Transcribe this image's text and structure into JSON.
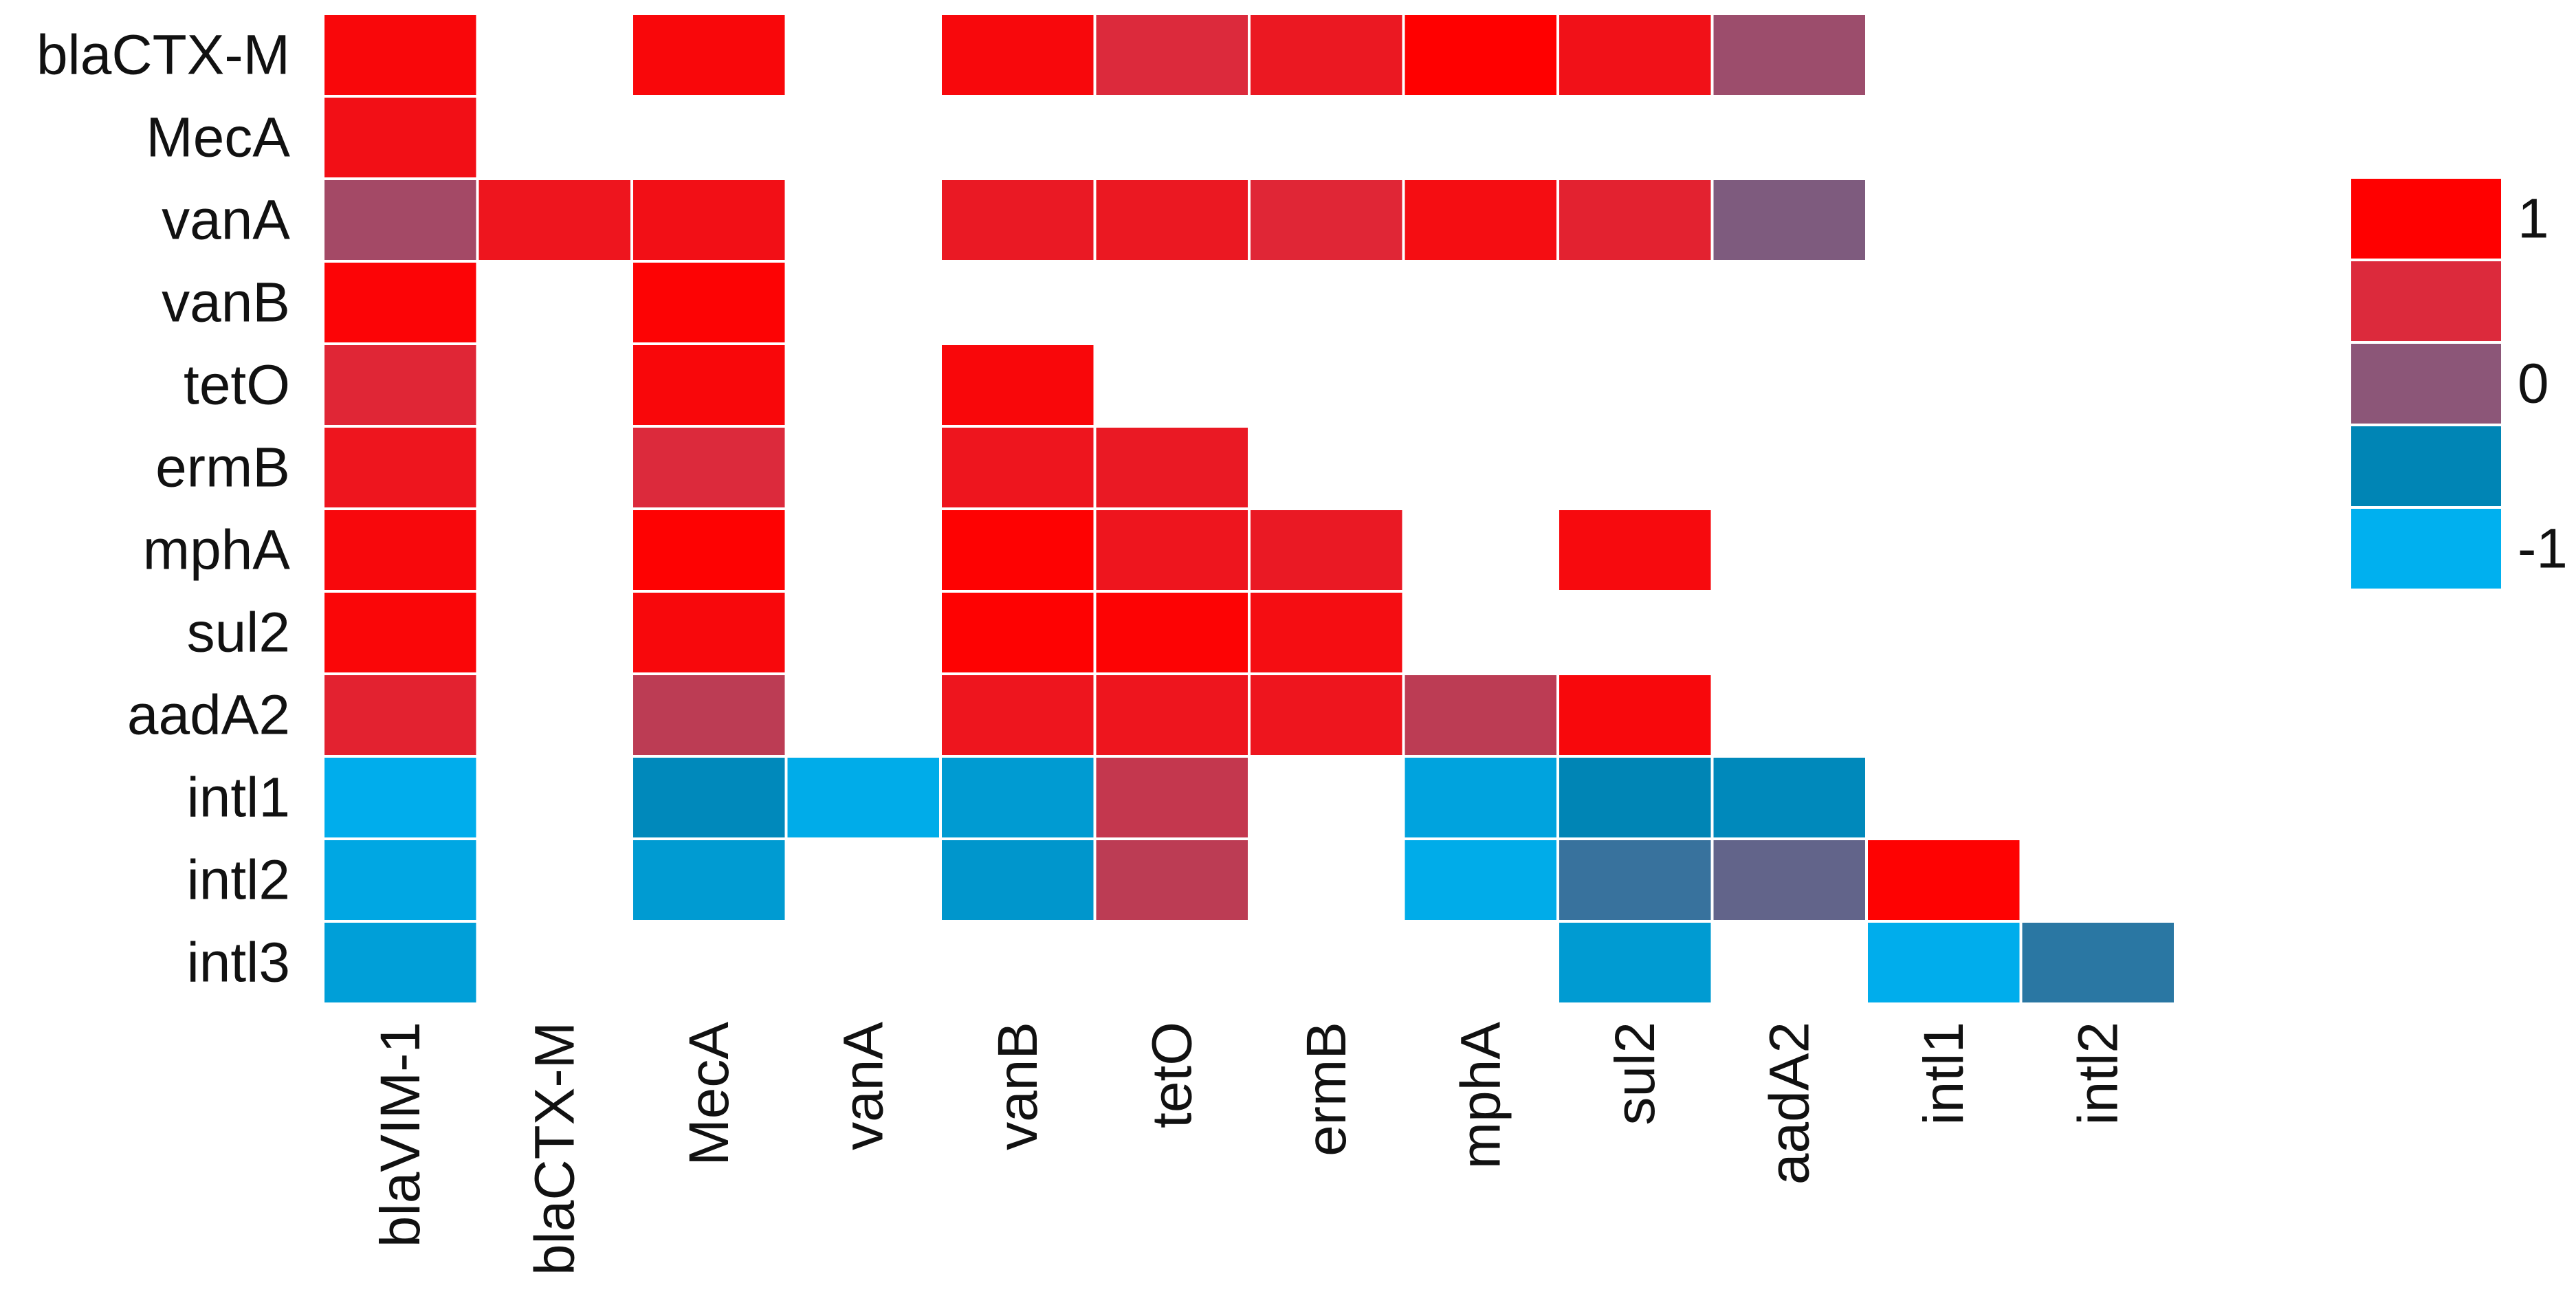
{
  "chart_data": {
    "type": "heatmap",
    "row_labels": [
      "blaCTX-M",
      "MecA",
      "vanA",
      "vanB",
      "tetO",
      "ermB",
      "mphA",
      "sul2",
      "aadA2",
      "intl1",
      "intl2",
      "intl3"
    ],
    "col_labels": [
      "blaVIM-1",
      "blaCTX-M",
      "MecA",
      "vanA",
      "vanB",
      "tetO",
      "ermB",
      "mphA",
      "sul2",
      "aadA2",
      "intl1",
      "intl2"
    ],
    "values": [
      [
        0.92,
        null,
        0.92,
        null,
        0.9,
        0.5,
        0.72,
        1.0,
        0.8,
        0.1
      ],
      [
        0.82
      ],
      [
        0.15,
        0.75,
        0.82,
        null,
        0.7,
        0.72,
        0.55,
        0.85,
        0.6,
        -0.05
      ],
      [
        0.95,
        null,
        0.97
      ],
      [
        0.55,
        null,
        0.92,
        null,
        0.92
      ],
      [
        0.75,
        null,
        0.5,
        null,
        0.75,
        0.7
      ],
      [
        0.9,
        null,
        0.98,
        null,
        0.98,
        0.75,
        0.7,
        null,
        0.88
      ],
      [
        0.93,
        null,
        0.9,
        null,
        0.98,
        0.97,
        0.85
      ],
      [
        0.6,
        null,
        0.3,
        null,
        0.75,
        0.75,
        0.75,
        0.3,
        0.9
      ],
      [
        -0.97,
        null,
        -0.55,
        -0.95,
        -0.75,
        0.35,
        null,
        -0.85,
        -0.5,
        -0.55
      ],
      [
        -0.9,
        null,
        -0.75,
        null,
        -0.7,
        0.3,
        null,
        -0.95,
        -0.3,
        -0.15,
        0.98
      ],
      [
        -0.8,
        null,
        null,
        null,
        null,
        null,
        null,
        null,
        -0.75,
        null,
        -0.97,
        -0.35
      ]
    ],
    "scale": {
      "min": -1,
      "max": 1
    },
    "legend": {
      "position": "right",
      "tick_labels": [
        "1",
        "0",
        "-1"
      ],
      "tick_values": [
        1,
        0,
        -1
      ],
      "swatches": [
        "#ff0000",
        "#dc2a3c",
        "#8c5678",
        "#0085b5",
        "#00b0ef"
      ]
    },
    "title": "",
    "xlabel": "",
    "ylabel": ""
  }
}
